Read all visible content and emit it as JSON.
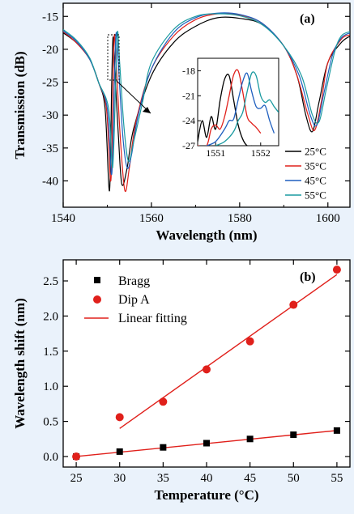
{
  "chart_data": [
    {
      "type": "line",
      "panel_label": "(a)",
      "xlabel": "Wavelength (nm)",
      "ylabel": "Transmission (dB)",
      "xlim": [
        1540,
        1605
      ],
      "ylim": [
        -44,
        -13
      ],
      "x_ticks": [
        1540,
        1560,
        1580,
        1600
      ],
      "y_ticks": [
        -40,
        -35,
        -30,
        -25,
        -20,
        -15
      ],
      "grid": false,
      "legend_position": "bottom-right",
      "series": [
        {
          "name": "25°C",
          "color": "#000000",
          "x": [
            1540,
            1543,
            1546,
            1548,
            1549.5,
            1550.5,
            1551,
            1551.3,
            1551.6,
            1552.5,
            1553.3,
            1554.5,
            1556,
            1560,
            1565,
            1570,
            1575,
            1580,
            1585,
            1590,
            1593,
            1595,
            1596.5,
            1598,
            1600,
            1603,
            1605
          ],
          "y": [
            -17.5,
            -19,
            -21.5,
            -25,
            -29,
            -41.5,
            -25,
            -18.2,
            -22,
            -33,
            -40.5,
            -38,
            -32,
            -24,
            -19,
            -16.5,
            -15.2,
            -15.3,
            -16.2,
            -19.5,
            -24,
            -30,
            -32.5,
            -28,
            -22,
            -19,
            -18
          ]
        },
        {
          "name": "35°C",
          "color": "#e0201b",
          "x": [
            1540,
            1543,
            1546,
            1548,
            1549.8,
            1550.8,
            1551.3,
            1551.6,
            1552,
            1553,
            1554,
            1555,
            1556.5,
            1560,
            1565,
            1570,
            1575,
            1580,
            1585,
            1590,
            1593,
            1595.5,
            1597,
            1598.5,
            1600,
            1603,
            1605
          ],
          "y": [
            -17.3,
            -19,
            -21.5,
            -25,
            -29,
            -40,
            -25,
            -17.8,
            -22,
            -34,
            -41.5,
            -38,
            -31,
            -23,
            -18,
            -15.5,
            -14.6,
            -14.8,
            -16,
            -19.5,
            -24,
            -30,
            -32.3,
            -28,
            -22,
            -18.5,
            -17.8
          ]
        },
        {
          "name": "45°C",
          "color": "#1f5fbf",
          "x": [
            1540,
            1543,
            1546,
            1548,
            1550,
            1551,
            1551.6,
            1552,
            1552.5,
            1553.5,
            1554.5,
            1555.5,
            1557,
            1560,
            1565,
            1570,
            1575,
            1580,
            1585,
            1590,
            1593.5,
            1596,
            1597.5,
            1599,
            1601,
            1603,
            1605
          ],
          "y": [
            -17.2,
            -18.8,
            -21.5,
            -25,
            -29,
            -39,
            -25,
            -17.5,
            -22,
            -33,
            -38,
            -36,
            -30,
            -23,
            -17.5,
            -15.2,
            -14.5,
            -14.7,
            -16,
            -19.5,
            -24,
            -30,
            -31.5,
            -27,
            -21,
            -18.3,
            -17.5
          ]
        },
        {
          "name": "55°C",
          "color": "#1a9aa0",
          "x": [
            1540,
            1543,
            1546,
            1548,
            1550.3,
            1551.2,
            1551.9,
            1552.3,
            1552.8,
            1553.8,
            1554.8,
            1556,
            1558,
            1560,
            1565,
            1570,
            1575,
            1580,
            1585,
            1590,
            1594,
            1596.5,
            1598,
            1599.5,
            1601.5,
            1603,
            1605
          ],
          "y": [
            -17,
            -18.6,
            -21.3,
            -25,
            -29,
            -38,
            -25,
            -17.3,
            -22,
            -32,
            -37,
            -34,
            -28,
            -22,
            -17,
            -15,
            -14.6,
            -14.9,
            -16.2,
            -19.5,
            -24,
            -30,
            -31,
            -26.5,
            -20.5,
            -18,
            -17.3
          ]
        }
      ],
      "inset": {
        "xlim": [
          1550.6,
          1552.4
        ],
        "ylim": [
          -27,
          -16.5
        ],
        "x_ticks": [
          1551,
          1552
        ],
        "y_ticks": [
          -27,
          -24,
          -21,
          -18
        ],
        "series": [
          {
            "name": "25°C",
            "color": "#000000",
            "x": [
              1550.6,
              1550.7,
              1550.8,
              1550.9,
              1551.0,
              1551.1,
              1551.2,
              1551.3,
              1551.4,
              1551.5,
              1551.6,
              1551.7,
              1551.8
            ],
            "y": [
              -26.5,
              -24,
              -26,
              -23.5,
              -25,
              -21.5,
              -19,
              -18.6,
              -21.5,
              -24.5,
              -26.2,
              -27,
              -27
            ]
          },
          {
            "name": "35°C",
            "color": "#e0201b",
            "x": [
              1550.6,
              1550.8,
              1550.9,
              1551.0,
              1551.1,
              1551.2,
              1551.3,
              1551.4,
              1551.5,
              1551.6,
              1551.7,
              1551.8,
              1551.9,
              1552.0
            ],
            "y": [
              -27,
              -27,
              -25,
              -24.5,
              -25,
              -23.5,
              -21,
              -18.5,
              -18,
              -20.5,
              -23.5,
              -24.3,
              -24.8,
              -25.5
            ]
          },
          {
            "name": "45°C",
            "color": "#1f5fbf",
            "x": [
              1550.8,
              1551.0,
              1551.2,
              1551.3,
              1551.4,
              1551.5,
              1551.6,
              1551.7,
              1551.8,
              1551.9,
              1552.0,
              1552.1,
              1552.2,
              1552.3
            ],
            "y": [
              -27,
              -26.5,
              -25,
              -24,
              -23.8,
              -21.5,
              -19.3,
              -18.3,
              -20.5,
              -22.3,
              -22.5,
              -22.2,
              -24,
              -25.5
            ]
          },
          {
            "name": "55°C",
            "color": "#1a9aa0",
            "x": [
              1551.0,
              1551.2,
              1551.4,
              1551.5,
              1551.6,
              1551.7,
              1551.8,
              1551.9,
              1552.0,
              1552.1,
              1552.2,
              1552.3,
              1552.4
            ],
            "y": [
              -27,
              -26.5,
              -25.3,
              -24,
              -23,
              -20.5,
              -18.3,
              -18.6,
              -21,
              -21.8,
              -21.5,
              -22.3,
              -23
            ]
          }
        ]
      }
    },
    {
      "type": "scatter",
      "panel_label": "(b)",
      "xlabel": "Temperature (°C)",
      "ylabel": "Wavelength shift (nm)",
      "xlim": [
        23.5,
        56.5
      ],
      "ylim": [
        -0.15,
        2.8
      ],
      "x_ticks": [
        25,
        30,
        35,
        40,
        45,
        50,
        55
      ],
      "y_ticks": [
        0.0,
        0.5,
        1.0,
        1.5,
        2.0,
        2.5
      ],
      "grid": false,
      "legend_position": "top-left",
      "legend_labels": [
        "Bragg",
        "Dip A",
        "Linear fitting"
      ],
      "series": [
        {
          "name": "Bragg",
          "marker": "square",
          "color": "#000000",
          "x": [
            25,
            30,
            35,
            40,
            45,
            50,
            55
          ],
          "y": [
            0.0,
            0.07,
            0.13,
            0.19,
            0.25,
            0.31,
            0.37
          ]
        },
        {
          "name": "Dip A",
          "marker": "circle",
          "color": "#e0201b",
          "x": [
            25,
            30,
            35,
            40,
            45,
            50,
            55
          ],
          "y": [
            0.0,
            0.56,
            0.78,
            1.24,
            1.64,
            2.16,
            2.66
          ]
        }
      ],
      "fits": [
        {
          "name": "Linear fitting",
          "color": "#e0201b",
          "x": [
            25,
            55
          ],
          "y": [
            0.0,
            0.37
          ]
        },
        {
          "name": "Linear fitting",
          "color": "#e0201b",
          "x": [
            30,
            55
          ],
          "y": [
            0.4,
            2.59
          ]
        }
      ]
    }
  ]
}
